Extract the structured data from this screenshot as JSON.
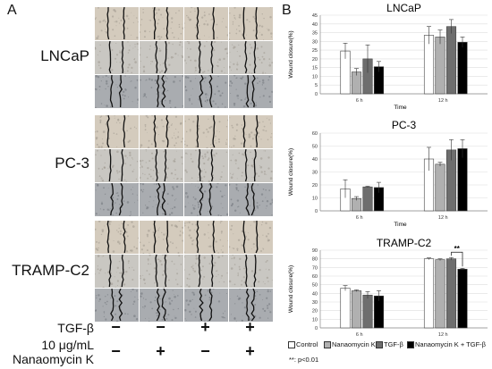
{
  "panels": {
    "a_label": "A",
    "b_label": "B"
  },
  "panel_a": {
    "cell_lines": [
      "LNCaP",
      "PC-3",
      "TRAMP-C2"
    ],
    "conditions": [
      {
        "label": "TGF-β",
        "signs": [
          "−",
          "−",
          "+",
          "+"
        ]
      },
      {
        "label_line1": "10 μg/mL",
        "label_line2": "Nanaomycin K",
        "signs": [
          "−",
          "+",
          "−",
          "+"
        ]
      }
    ]
  },
  "legend": {
    "items": [
      {
        "label": "Control",
        "color": "#ffffff"
      },
      {
        "label": "Nanaomycin K",
        "color": "#b0b0b0"
      },
      {
        "label": "TGF-β",
        "color": "#6e6e6e"
      },
      {
        "label": "Nanaomycin K + TGF-β",
        "color": "#000000"
      }
    ],
    "note": "**: p<0.01"
  },
  "chart_data": [
    {
      "type": "bar",
      "title": "LNCaP",
      "xlabel": "Time",
      "ylabel": "Wound closure(%)",
      "categories": [
        "6 h",
        "12 h"
      ],
      "ylim": [
        0,
        45
      ],
      "yticks": [
        0,
        5,
        10,
        15,
        20,
        25,
        30,
        35,
        40,
        45
      ],
      "series": [
        {
          "name": "Control",
          "values": [
            24.5,
            33.5
          ],
          "errors": [
            4.5,
            5
          ]
        },
        {
          "name": "Nanaomycin K",
          "values": [
            12.5,
            32.5
          ],
          "errors": [
            2,
            4
          ]
        },
        {
          "name": "TGF-β",
          "values": [
            20,
            38.5
          ],
          "errors": [
            8,
            4
          ]
        },
        {
          "name": "Nanaomycin K + TGF-β",
          "values": [
            15.5,
            29.5
          ],
          "errors": [
            3,
            3
          ]
        }
      ]
    },
    {
      "type": "bar",
      "title": "PC-3",
      "xlabel": "Time",
      "ylabel": "Wound closure(%)",
      "categories": [
        "6 h",
        "12 h"
      ],
      "ylim": [
        0,
        60
      ],
      "yticks": [
        0,
        10,
        20,
        30,
        40,
        50,
        60
      ],
      "series": [
        {
          "name": "Control",
          "values": [
            17,
            40
          ],
          "errors": [
            7,
            9
          ]
        },
        {
          "name": "Nanaomycin K",
          "values": [
            9.5,
            36
          ],
          "errors": [
            1.5,
            1.5
          ]
        },
        {
          "name": "TGF-β",
          "values": [
            18.5,
            47
          ],
          "errors": [
            0.5,
            8
          ]
        },
        {
          "name": "Nanaomycin K + TGF-β",
          "values": [
            18,
            48
          ],
          "errors": [
            4,
            7
          ]
        }
      ]
    },
    {
      "type": "bar",
      "title": "TRAMP-C2",
      "xlabel": "Time",
      "ylabel": "Wound closure(%)",
      "categories": [
        "6 h",
        "12 h"
      ],
      "ylim": [
        0,
        90
      ],
      "yticks": [
        0,
        10,
        20,
        30,
        40,
        50,
        60,
        70,
        80,
        90
      ],
      "series": [
        {
          "name": "Control",
          "values": [
            46,
            80
          ],
          "errors": [
            3,
            1
          ]
        },
        {
          "name": "Nanaomycin K",
          "values": [
            43,
            79
          ],
          "errors": [
            1,
            1
          ]
        },
        {
          "name": "TGF-β",
          "values": [
            38,
            80
          ],
          "errors": [
            4,
            1.5
          ]
        },
        {
          "name": "Nanaomycin K + TGF-β",
          "values": [
            37,
            68
          ],
          "errors": [
            6,
            1
          ]
        }
      ],
      "significance": {
        "label": "**"
      }
    }
  ]
}
